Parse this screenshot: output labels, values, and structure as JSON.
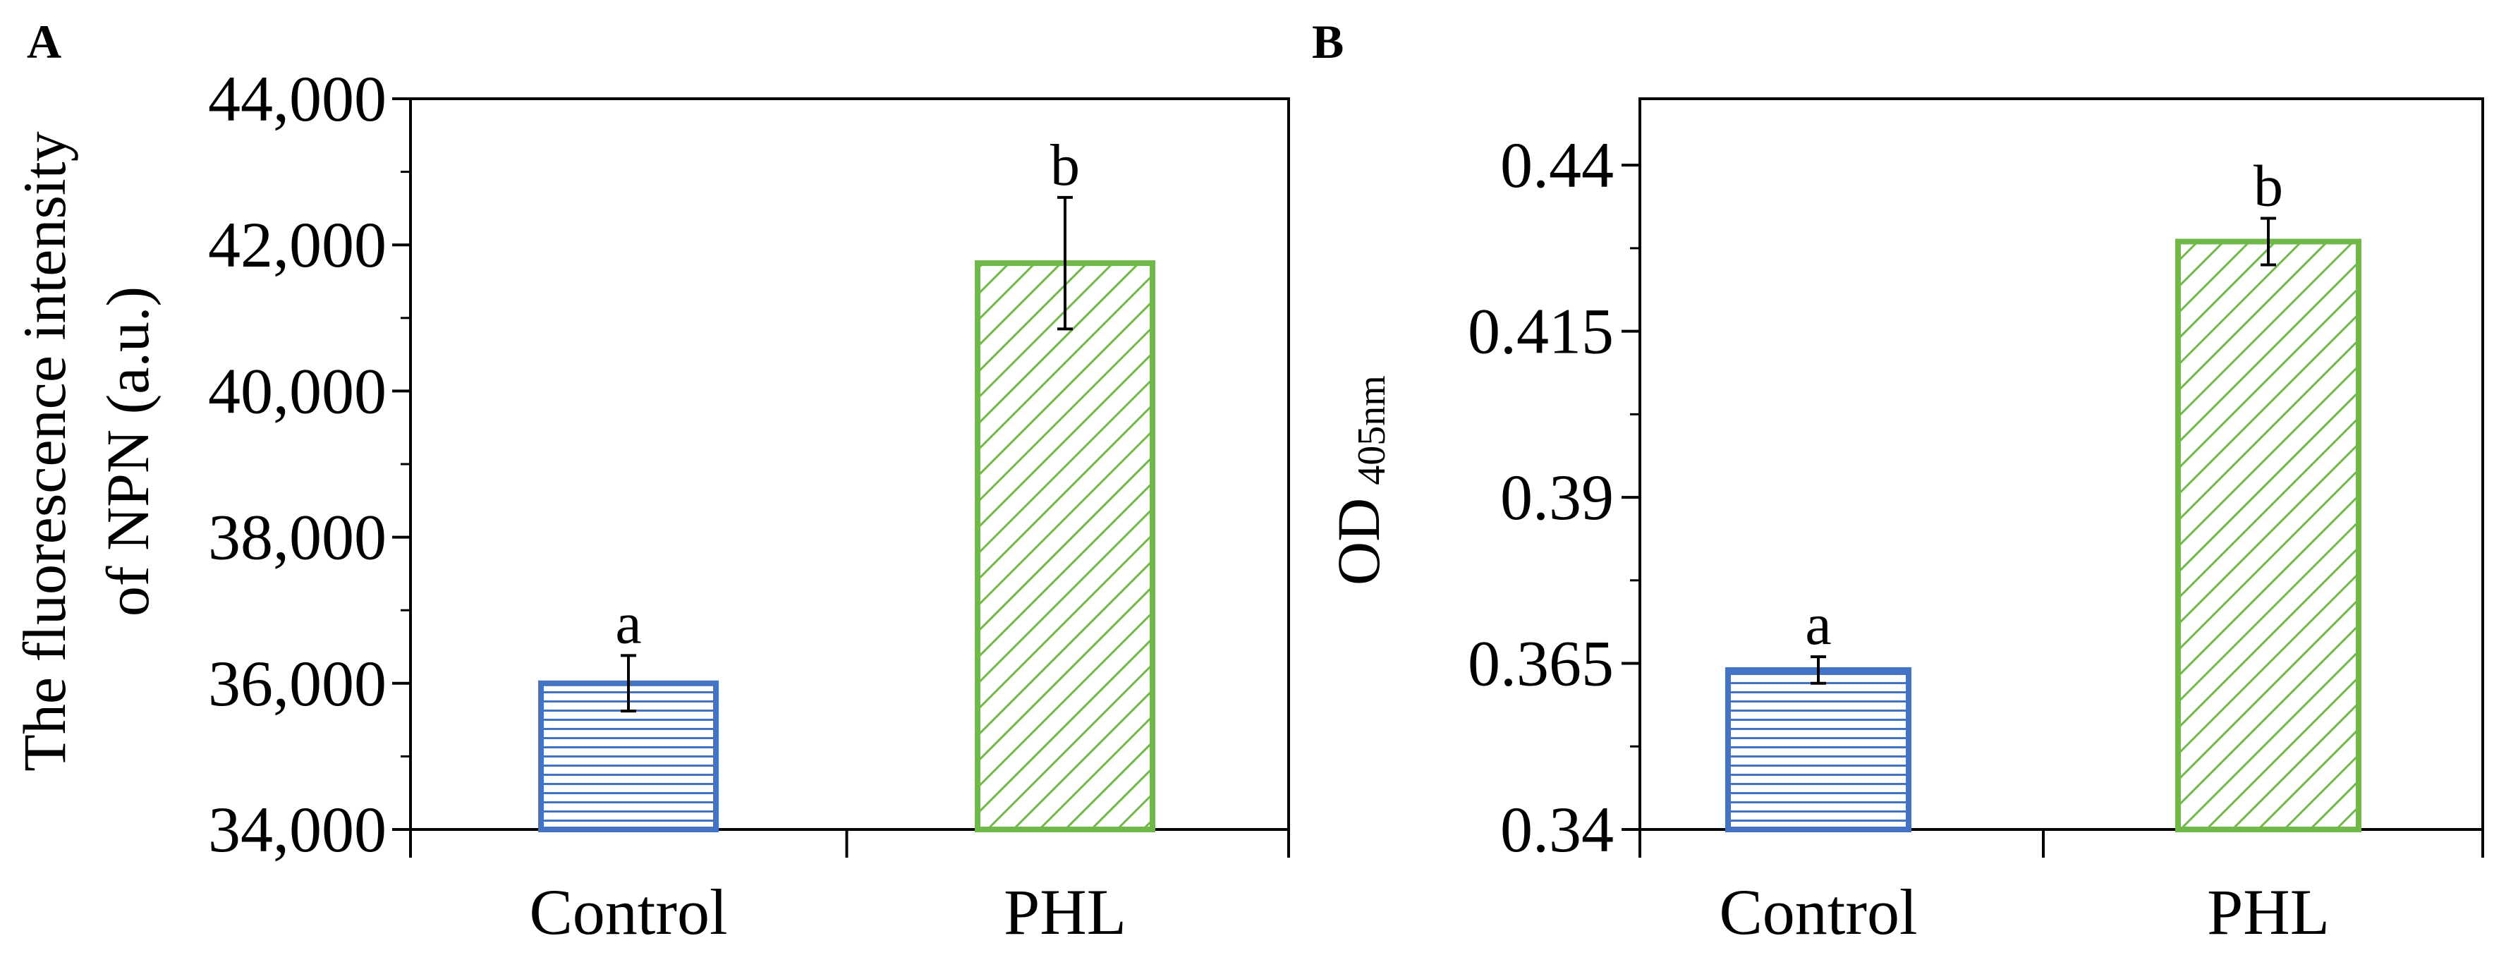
{
  "colors": {
    "control": "#4472C4",
    "phl": "#70B84A",
    "axis": "#000000"
  },
  "chart_data": [
    {
      "panel": "A",
      "type": "bar",
      "categories": [
        "Control",
        "PHL"
      ],
      "values": [
        36000,
        41750
      ],
      "errors": [
        380,
        900
      ],
      "significance": [
        "a",
        "b"
      ],
      "patterns": [
        "horizontal",
        "diagonal"
      ],
      "ylabel_line1": "The fluorescence intensity",
      "ylabel_line2": "of NPN (a.u.)",
      "ylim": [
        34000,
        44000
      ],
      "yticks": [
        34000,
        36000,
        38000,
        40000,
        42000,
        44000
      ],
      "ytick_labels": [
        "34,000",
        "36,000",
        "38,000",
        "40,000",
        "42,000",
        "44,000"
      ],
      "minor_step": 1000
    },
    {
      "panel": "B",
      "type": "bar",
      "categories": [
        "Control",
        "PHL"
      ],
      "values": [
        0.364,
        0.4285
      ],
      "errors": [
        0.002,
        0.0035
      ],
      "significance": [
        "a",
        "b"
      ],
      "patterns": [
        "horizontal",
        "diagonal"
      ],
      "ylabel_main": "OD",
      "ylabel_sub": "405nm",
      "ylim": [
        0.34,
        0.45
      ],
      "yticks": [
        0.34,
        0.365,
        0.39,
        0.415,
        0.44
      ],
      "ytick_labels": [
        "0.34",
        "0.365",
        "0.39",
        "0.415",
        "0.44"
      ],
      "minor_step": 0.0125
    }
  ]
}
